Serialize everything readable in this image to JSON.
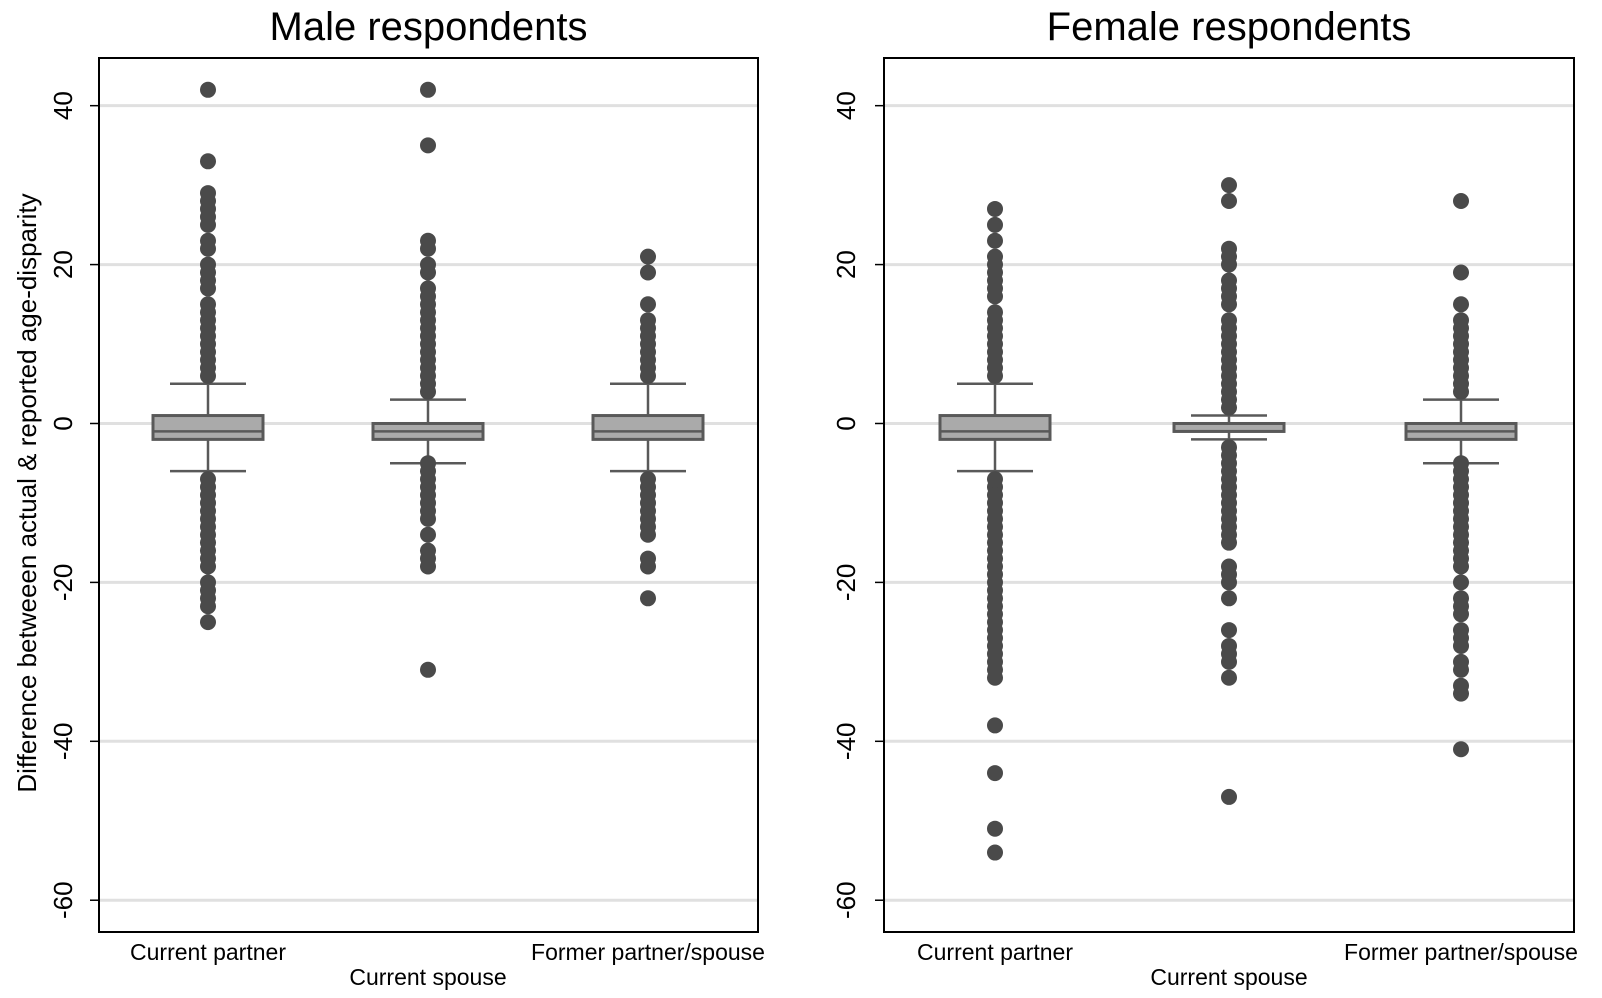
{
  "ylabel": "Difference betweeen actual & reported age-disparity",
  "y_ticks": [
    40,
    20,
    0,
    -20,
    -40,
    -60
  ],
  "colors": {
    "box_fill": "#aaaaaa",
    "box_line": "#595959",
    "outlier": "#4a4a4a",
    "grid": "#e0e0e0",
    "frame": "#000000"
  },
  "chart_data": [
    {
      "type": "box",
      "title": "Male respondents",
      "xlabel": "",
      "ylabel": "Difference betweeen actual & reported age-disparity",
      "ylim": [
        -64,
        46
      ],
      "grid": true,
      "categories": [
        "Current partner",
        "Current spouse",
        "Former partner/spouse"
      ],
      "boxes": [
        {
          "category": "Current partner",
          "q1": -2,
          "median": -1,
          "q3": 1,
          "whisker_low": -6,
          "whisker_high": 5,
          "outliers": [
            42,
            33,
            29,
            28,
            27,
            26,
            25,
            23,
            22,
            20,
            19,
            18,
            17,
            15,
            14,
            13,
            12,
            11,
            10,
            9,
            8,
            7,
            6,
            -7,
            -8,
            -9,
            -10,
            -11,
            -12,
            -13,
            -14,
            -15,
            -16,
            -17,
            -18,
            -20,
            -21,
            -22,
            -23,
            -25
          ]
        },
        {
          "category": "Current spouse",
          "q1": -2,
          "median": -1,
          "q3": 0,
          "whisker_low": -5,
          "whisker_high": 3,
          "outliers": [
            42,
            35,
            23,
            22,
            20,
            19,
            17,
            16,
            15,
            14,
            13,
            12,
            11,
            10,
            9,
            8,
            7,
            6,
            5,
            4,
            -5,
            -6,
            -7,
            -8,
            -9,
            -10,
            -11,
            -12,
            -14,
            -16,
            -17,
            -18,
            -31
          ]
        },
        {
          "category": "Former partner/spouse",
          "q1": -2,
          "median": -1,
          "q3": 1,
          "whisker_low": -6,
          "whisker_high": 5,
          "outliers": [
            21,
            19,
            15,
            13,
            12,
            11,
            10,
            9,
            8,
            7,
            6,
            -7,
            -8,
            -9,
            -10,
            -11,
            -12,
            -13,
            -14,
            -17,
            -18,
            -22
          ]
        }
      ]
    },
    {
      "type": "box",
      "title": "Female respondents",
      "xlabel": "",
      "ylabel": "",
      "ylim": [
        -64,
        46
      ],
      "grid": true,
      "categories": [
        "Current partner",
        "Current spouse",
        "Former partner/spouse"
      ],
      "boxes": [
        {
          "category": "Current partner",
          "q1": -2,
          "median": -1,
          "q3": 1,
          "whisker_low": -6,
          "whisker_high": 5,
          "outliers": [
            27,
            25,
            23,
            21,
            20,
            19,
            18,
            17,
            16,
            14,
            13,
            12,
            11,
            10,
            9,
            8,
            7,
            6,
            -7,
            -8,
            -9,
            -10,
            -11,
            -12,
            -13,
            -14,
            -15,
            -16,
            -17,
            -18,
            -19,
            -20,
            -21,
            -22,
            -23,
            -24,
            -25,
            -26,
            -27,
            -28,
            -29,
            -30,
            -31,
            -32,
            -38,
            -44,
            -51,
            -54
          ]
        },
        {
          "category": "Current spouse",
          "q1": -1,
          "median": -1,
          "q3": 0,
          "whisker_low": -2,
          "whisker_high": 1,
          "outliers": [
            30,
            28,
            22,
            21,
            20,
            18,
            17,
            16,
            15,
            13,
            12,
            11,
            10,
            9,
            8,
            7,
            6,
            5,
            4,
            3,
            2,
            -3,
            -4,
            -5,
            -6,
            -7,
            -8,
            -9,
            -10,
            -11,
            -12,
            -13,
            -14,
            -15,
            -18,
            -19,
            -20,
            -22,
            -26,
            -28,
            -29,
            -30,
            -32,
            -47
          ]
        },
        {
          "category": "Former partner/spouse",
          "q1": -2,
          "median": -1,
          "q3": 0,
          "whisker_low": -5,
          "whisker_high": 3,
          "outliers": [
            28,
            19,
            15,
            13,
            12,
            11,
            10,
            9,
            8,
            7,
            6,
            5,
            4,
            -5,
            -6,
            -7,
            -8,
            -9,
            -10,
            -11,
            -12,
            -13,
            -14,
            -15,
            -16,
            -17,
            -18,
            -20,
            -22,
            -23,
            -24,
            -26,
            -27,
            -28,
            -30,
            -31,
            -33,
            -34,
            -41
          ]
        }
      ]
    }
  ]
}
